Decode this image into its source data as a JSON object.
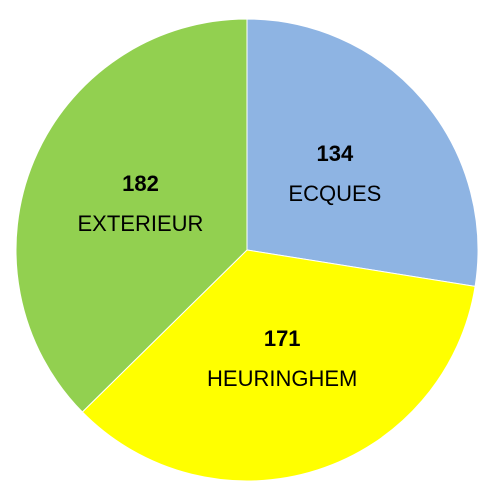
{
  "chart_data": {
    "type": "pie",
    "categories": [
      "ECQUES",
      "HEURINGHEM",
      "EXTERIEUR"
    ],
    "values": [
      134,
      171,
      182
    ],
    "colors": [
      "#8eb4e3",
      "#ffff00",
      "#92d050"
    ]
  }
}
